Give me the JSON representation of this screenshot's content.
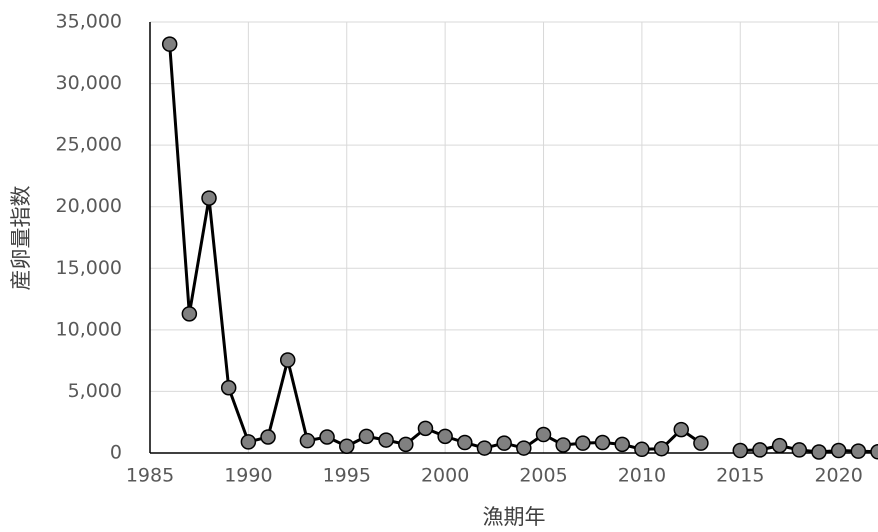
{
  "chart_data": {
    "type": "line",
    "x_label": "漁期年",
    "y_label": "産卵量指数",
    "x": [
      1986,
      1987,
      1988,
      1989,
      1990,
      1991,
      1992,
      1993,
      1994,
      1995,
      1996,
      1997,
      1998,
      1999,
      2000,
      2001,
      2002,
      2003,
      2004,
      2005,
      2006,
      2007,
      2008,
      2009,
      2010,
      2011,
      2012,
      2013,
      2014,
      2015,
      2016,
      2017,
      2018,
      2019,
      2020,
      2021,
      2022
    ],
    "series": [
      {
        "name": "産卵量指数",
        "color": "#000000",
        "marker_color": "#808080",
        "values": [
          33200,
          11300,
          20700,
          5300,
          900,
          1300,
          7550,
          1000,
          1300,
          550,
          1350,
          1050,
          700,
          2000,
          1350,
          850,
          400,
          800,
          400,
          1500,
          650,
          800,
          850,
          700,
          300,
          350,
          1900,
          800,
          null,
          200,
          250,
          600,
          250,
          80,
          200,
          150,
          100
        ]
      }
    ],
    "xlim": [
      1985,
      2022
    ],
    "xticks": [
      1985,
      1990,
      1995,
      2000,
      2005,
      2010,
      2015,
      2020
    ],
    "ylim": [
      0,
      35000
    ],
    "yticks": [
      0,
      {
        "value": 5000,
        "label": "5,000"
      },
      {
        "value": 10000,
        "label": "10,000"
      },
      {
        "value": 15000,
        "label": "15,000"
      },
      {
        "value": 20000,
        "label": "20,000"
      },
      {
        "value": 25000,
        "label": "25,000"
      },
      {
        "value": 30000,
        "label": "30,000"
      },
      {
        "value": 35000,
        "label": "35,000"
      }
    ],
    "grid": true
  }
}
